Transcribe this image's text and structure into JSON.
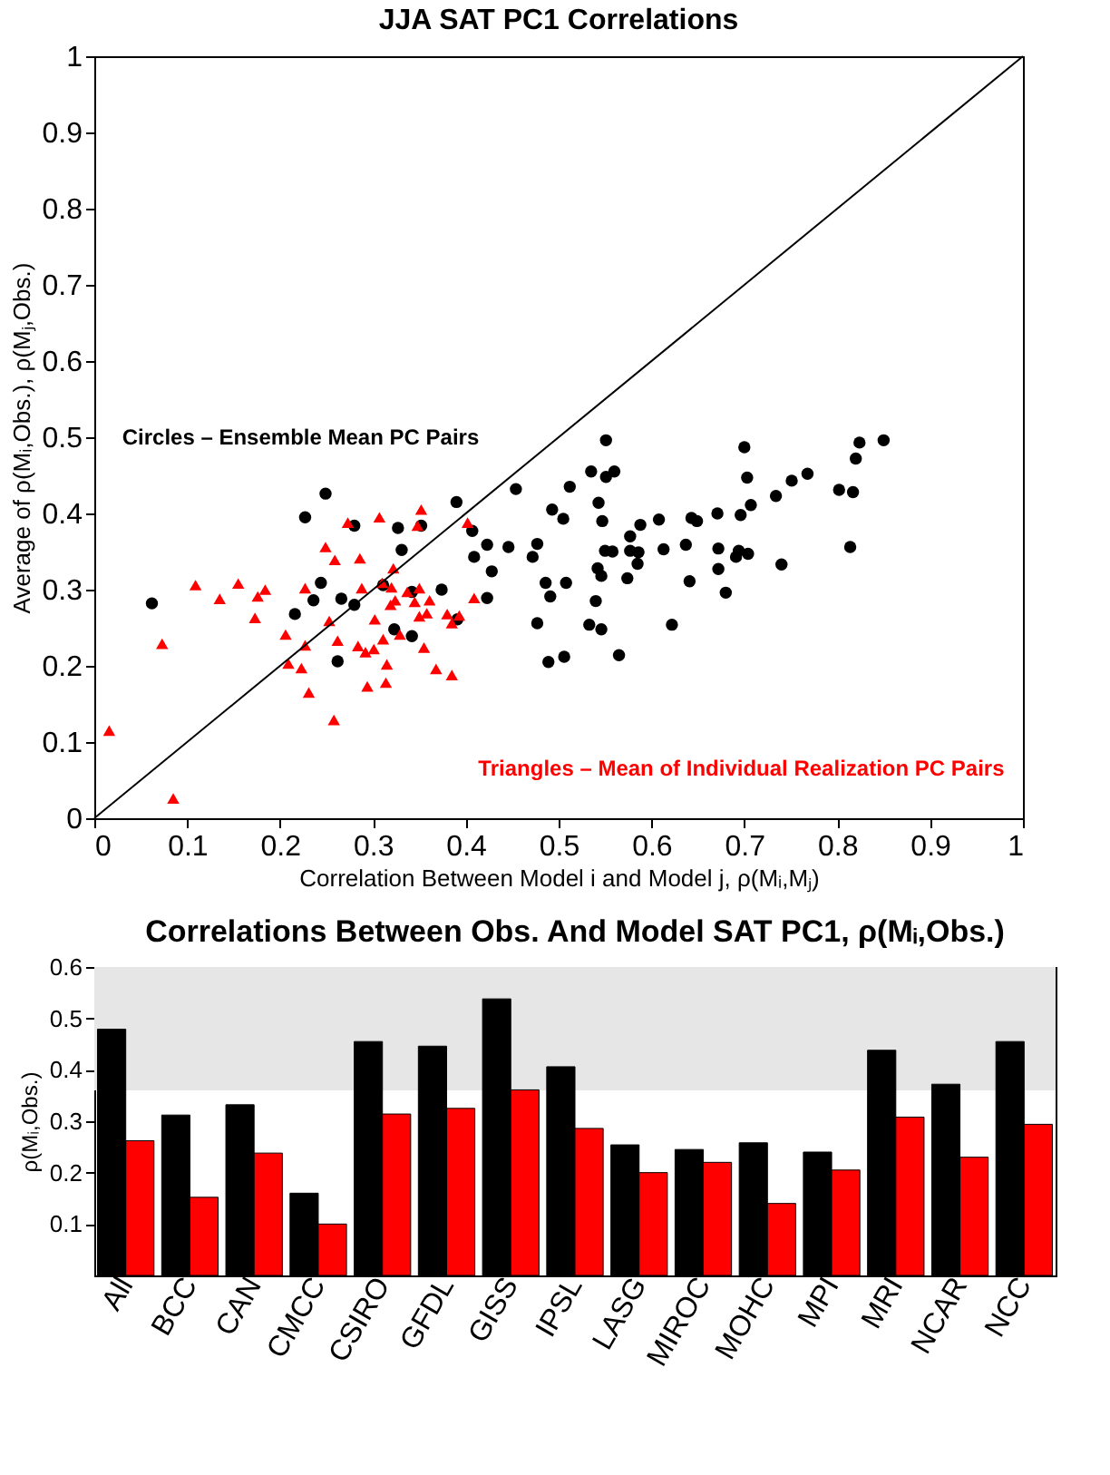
{
  "chart_data": [
    {
      "type": "scatter",
      "title": "JJA SAT PC1 Correlations",
      "xlabel": "Correlation Between Model i and Model j, ρ(Mᵢ,Mⱼ)",
      "ylabel": "Average of ρ(Mᵢ,Obs.), ρ(Mⱼ,Obs.)",
      "xlim": [
        0,
        1
      ],
      "ylim": [
        0,
        1
      ],
      "xticks": [
        0,
        0.1,
        0.2,
        0.3,
        0.4,
        0.5,
        0.6,
        0.7,
        0.8,
        0.9,
        1
      ],
      "yticks": [
        0,
        0.1,
        0.2,
        0.3,
        0.4,
        0.5,
        0.6,
        0.7,
        0.8,
        0.9,
        1
      ],
      "annotations": [
        "Circles – Ensemble Mean PC Pairs",
        "Triangles –  Mean of Individual Realization PC Pairs"
      ],
      "series": [
        {
          "type": "scatter",
          "marker": "circle",
          "color": "#000000",
          "x": [
            0.062,
            0.227,
            0.249,
            0.216,
            0.236,
            0.244,
            0.266,
            0.262,
            0.28,
            0.28,
            0.311,
            0.327,
            0.331,
            0.352,
            0.342,
            0.323,
            0.342,
            0.374,
            0.39,
            0.391,
            0.407,
            0.409,
            0.423,
            0.428,
            0.423,
            0.446,
            0.454,
            0.472,
            0.477,
            0.477,
            0.486,
            0.493,
            0.491,
            0.489,
            0.505,
            0.508,
            0.506,
            0.512,
            0.551,
            0.535,
            0.551,
            0.56,
            0.543,
            0.547,
            0.55,
            0.558,
            0.542,
            0.546,
            0.54,
            0.533,
            0.546,
            0.565,
            0.577,
            0.577,
            0.586,
            0.585,
            0.574,
            0.588,
            0.608,
            0.613,
            0.622,
            0.637,
            0.641,
            0.643,
            0.649,
            0.671,
            0.672,
            0.672,
            0.68,
            0.691,
            0.694,
            0.704,
            0.696,
            0.707,
            0.7,
            0.703,
            0.734,
            0.751,
            0.768,
            0.74,
            0.802,
            0.817,
            0.814,
            0.82,
            0.824,
            0.85
          ],
          "values": [
            0.282,
            0.395,
            0.426,
            0.268,
            0.286,
            0.309,
            0.288,
            0.206,
            0.384,
            0.28,
            0.306,
            0.381,
            0.352,
            0.384,
            0.297,
            0.248,
            0.239,
            0.3,
            0.415,
            0.261,
            0.377,
            0.343,
            0.359,
            0.324,
            0.289,
            0.356,
            0.432,
            0.343,
            0.36,
            0.256,
            0.309,
            0.405,
            0.291,
            0.205,
            0.393,
            0.309,
            0.212,
            0.435,
            0.496,
            0.455,
            0.448,
            0.455,
            0.414,
            0.39,
            0.351,
            0.35,
            0.328,
            0.318,
            0.285,
            0.254,
            0.248,
            0.214,
            0.37,
            0.351,
            0.349,
            0.334,
            0.315,
            0.385,
            0.392,
            0.353,
            0.254,
            0.359,
            0.311,
            0.394,
            0.39,
            0.4,
            0.354,
            0.327,
            0.296,
            0.343,
            0.351,
            0.347,
            0.398,
            0.411,
            0.487,
            0.447,
            0.423,
            0.443,
            0.452,
            0.333,
            0.431,
            0.428,
            0.356,
            0.472,
            0.493,
            0.496
          ]
        },
        {
          "type": "scatter",
          "marker": "triangle",
          "color": "#ff0000",
          "x": [
            0.016,
            0.085,
            0.073,
            0.109,
            0.135,
            0.155,
            0.176,
            0.184,
            0.173,
            0.206,
            0.209,
            0.223,
            0.227,
            0.227,
            0.231,
            0.249,
            0.259,
            0.253,
            0.262,
            0.258,
            0.273,
            0.286,
            0.288,
            0.284,
            0.292,
            0.294,
            0.301,
            0.302,
            0.307,
            0.31,
            0.311,
            0.315,
            0.314,
            0.322,
            0.32,
            0.319,
            0.324,
            0.329,
            0.337,
            0.345,
            0.348,
            0.352,
            0.35,
            0.35,
            0.355,
            0.358,
            0.361,
            0.368,
            0.38,
            0.385,
            0.385,
            0.393,
            0.402,
            0.409
          ],
          "values": [
            0.115,
            0.026,
            0.229,
            0.306,
            0.288,
            0.308,
            0.291,
            0.3,
            0.263,
            0.241,
            0.203,
            0.197,
            0.302,
            0.227,
            0.165,
            0.356,
            0.339,
            0.259,
            0.233,
            0.129,
            0.388,
            0.341,
            0.302,
            0.226,
            0.218,
            0.173,
            0.222,
            0.261,
            0.395,
            0.309,
            0.235,
            0.202,
            0.178,
            0.328,
            0.303,
            0.28,
            0.286,
            0.241,
            0.297,
            0.284,
            0.384,
            0.405,
            0.302,
            0.265,
            0.224,
            0.269,
            0.286,
            0.196,
            0.268,
            0.256,
            0.188,
            0.266,
            0.388,
            0.289
          ]
        },
        {
          "type": "line",
          "color": "#000000",
          "x": [
            0,
            1
          ],
          "values": [
            0,
            1
          ]
        }
      ]
    },
    {
      "type": "bar",
      "title": "Correlations Between Obs. And Model SAT PC1, ρ(Mᵢ,Obs.)",
      "ylabel": "ρ(Mᵢ,Obs.)",
      "categories": [
        "All",
        "BCC",
        "CAN",
        "CMCC",
        "CSIRO",
        "GFDL",
        "GISS",
        "IPSL",
        "LASG",
        "MIROC",
        "MOHC",
        "MPI",
        "MRI",
        "NCAR",
        "NCC"
      ],
      "ylim": [
        0,
        0.6
      ],
      "yticks": [
        0.1,
        0.2,
        0.3,
        0.4,
        0.5,
        0.6
      ],
      "bands": [
        {
          "axis": "y",
          "from": 0.36,
          "to": 0.6,
          "color": "#e6e6e6"
        }
      ],
      "series": [
        {
          "color": "#000000",
          "values": [
            0.479,
            0.312,
            0.332,
            0.16,
            0.455,
            0.446,
            0.538,
            0.406,
            0.254,
            0.245,
            0.258,
            0.24,
            0.438,
            0.372,
            0.455
          ]
        },
        {
          "color": "#ff0000",
          "values": [
            0.262,
            0.152,
            0.238,
            0.1,
            0.314,
            0.325,
            0.361,
            0.286,
            0.2,
            0.22,
            0.14,
            0.205,
            0.308,
            0.23,
            0.294
          ]
        }
      ]
    }
  ]
}
